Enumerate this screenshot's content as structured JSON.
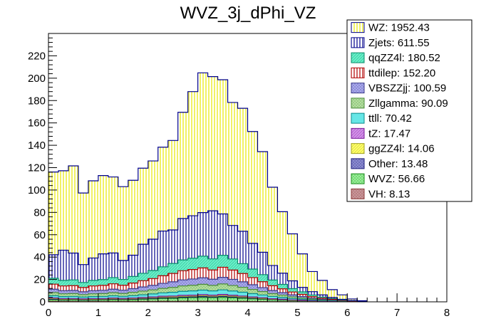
{
  "chart_data": {
    "type": "bar",
    "stacked": true,
    "title": "WVZ_3j_dPhi_VZ",
    "xlabel": "",
    "ylabel": "",
    "xlim": [
      0,
      8
    ],
    "ylim": [
      0,
      240
    ],
    "bin_width": 0.2,
    "x_ticks": [
      "0",
      "1",
      "2",
      "3",
      "4",
      "5",
      "6",
      "7",
      "8"
    ],
    "y_ticks": [
      "0",
      "20",
      "40",
      "60",
      "80",
      "100",
      "120",
      "140",
      "160",
      "180",
      "200",
      "220"
    ],
    "legend_position": "top-right",
    "series": [
      {
        "name": "VH",
        "total": "8.13",
        "fill": "#c8969a",
        "stroke": "#8b3a3a",
        "pattern": "cross",
        "values": [
          0.4,
          0.3,
          0.3,
          0.2,
          0.3,
          0.3,
          0.3,
          0.3,
          0.3,
          0.4,
          0.4,
          0.5,
          0.4,
          0.5,
          0.5,
          0.5,
          0.5,
          0.5,
          0.4,
          0.4,
          0.3,
          0.3,
          0.2,
          0.2,
          0.1,
          0.1,
          0.1,
          0.1,
          0.1,
          0.1,
          0.05,
          0.05
        ]
      },
      {
        "name": "WVZ",
        "total": "56.66",
        "fill": "#98f098",
        "stroke": "#1a8a1a",
        "pattern": "cross",
        "values": [
          1.5,
          1.3,
          1.4,
          1.2,
          1.3,
          1.4,
          1.6,
          1.5,
          1.6,
          1.9,
          2.2,
          2.5,
          2.7,
          3.0,
          3.2,
          3.4,
          3.2,
          3.5,
          3.2,
          2.8,
          2.4,
          2.0,
          1.6,
          1.3,
          1.0,
          0.8,
          0.5,
          0.4,
          0.3,
          0.2,
          0.1,
          0.05
        ]
      },
      {
        "name": "Other",
        "total": "13.48",
        "fill": "#8c8cd0",
        "stroke": "#1a1a7a",
        "pattern": "cross",
        "values": [
          0.5,
          0.4,
          0.4,
          0.4,
          0.4,
          0.4,
          0.4,
          0.4,
          0.4,
          0.5,
          0.5,
          0.6,
          0.6,
          0.7,
          0.7,
          0.8,
          0.7,
          0.8,
          0.7,
          0.6,
          0.5,
          0.4,
          0.3,
          0.3,
          0.2,
          0.2,
          0.1,
          0.1,
          0.1,
          0.05,
          0.05,
          0
        ]
      },
      {
        "name": "ggZZ4l",
        "total": "14.06",
        "fill": "#ffff66",
        "stroke": "#a0a020",
        "pattern": "hatch",
        "values": [
          0.5,
          0.4,
          0.4,
          0.4,
          0.4,
          0.4,
          0.5,
          0.4,
          0.5,
          0.5,
          0.6,
          0.6,
          0.7,
          0.7,
          0.7,
          0.8,
          0.7,
          0.8,
          0.7,
          0.6,
          0.5,
          0.4,
          0.3,
          0.3,
          0.2,
          0.2,
          0.1,
          0.1,
          0.1,
          0.05,
          0,
          0
        ]
      },
      {
        "name": "tZ",
        "total": "17.47",
        "fill": "#d290e8",
        "stroke": "#7a1a9a",
        "pattern": "hatch",
        "values": [
          0.6,
          0.5,
          0.5,
          0.5,
          0.5,
          0.5,
          0.6,
          0.5,
          0.6,
          0.6,
          0.7,
          0.8,
          0.8,
          0.9,
          0.9,
          1.0,
          0.9,
          1.0,
          0.9,
          0.8,
          0.7,
          0.6,
          0.4,
          0.3,
          0.3,
          0.2,
          0.2,
          0.1,
          0.1,
          0.05,
          0,
          0
        ]
      },
      {
        "name": "ttll",
        "total": "70.42",
        "fill": "#66e6e6",
        "stroke": "#0a8a8a",
        "pattern": "solid",
        "values": [
          2.0,
          1.8,
          1.8,
          1.6,
          1.8,
          1.8,
          2.0,
          1.8,
          2.1,
          2.4,
          2.7,
          3.0,
          3.3,
          3.6,
          3.8,
          4.0,
          3.8,
          4.1,
          3.8,
          3.4,
          2.9,
          2.4,
          2.0,
          1.6,
          1.2,
          0.9,
          0.6,
          0.4,
          0.3,
          0.2,
          0.1,
          0.05
        ]
      },
      {
        "name": "Zllgamma",
        "total": "90.09",
        "fill": "#b4e0a0",
        "stroke": "#4a8a3a",
        "pattern": "cross",
        "values": [
          2.8,
          2.5,
          2.6,
          2.2,
          2.5,
          2.6,
          2.8,
          2.6,
          3.0,
          3.3,
          3.6,
          4.0,
          4.4,
          4.8,
          5.0,
          5.2,
          4.9,
          5.3,
          4.9,
          4.4,
          3.8,
          3.1,
          2.5,
          2.0,
          1.5,
          1.1,
          0.8,
          0.5,
          0.3,
          0.2,
          0.1,
          0.05
        ]
      },
      {
        "name": "VBSZZjj",
        "total": "100.59",
        "fill": "#aaaaee",
        "stroke": "#3a3a8a",
        "pattern": "cross",
        "values": [
          3.0,
          2.8,
          2.8,
          2.5,
          2.8,
          2.9,
          3.1,
          2.9,
          3.3,
          3.7,
          4.0,
          4.5,
          5.0,
          5.4,
          5.6,
          5.8,
          5.5,
          5.9,
          5.5,
          4.9,
          4.2,
          3.5,
          2.8,
          2.2,
          1.7,
          1.3,
          0.9,
          0.6,
          0.4,
          0.2,
          0.1,
          0.05
        ]
      },
      {
        "name": "ttdilep",
        "total": "152.20",
        "fill": "#ff6666",
        "stroke": "#b00000",
        "pattern": "vline",
        "values": [
          4.5,
          4.2,
          4.3,
          3.8,
          4.2,
          4.4,
          4.8,
          4.4,
          5.0,
          5.6,
          6.1,
          6.8,
          7.5,
          8.2,
          8.5,
          8.8,
          8.3,
          9.0,
          8.3,
          7.4,
          6.4,
          5.3,
          4.3,
          3.4,
          2.6,
          1.9,
          1.3,
          0.9,
          0.6,
          0.3,
          0.2,
          0.1
        ]
      },
      {
        "name": "qqZZ4l",
        "total": "180.52",
        "fill": "#66f0c8",
        "stroke": "#0a8a6a",
        "pattern": "hatch",
        "values": [
          5.3,
          5.0,
          5.1,
          4.5,
          5.0,
          5.2,
          5.6,
          5.2,
          5.9,
          6.6,
          7.2,
          8.0,
          8.9,
          9.7,
          10.1,
          10.5,
          9.9,
          10.7,
          9.9,
          8.8,
          7.6,
          6.3,
          5.1,
          4.0,
          3.0,
          2.2,
          1.5,
          1.0,
          0.6,
          0.4,
          0.2,
          0.1
        ]
      },
      {
        "name": "Zjets",
        "total": "611.55",
        "fill": "#6666ee",
        "stroke": "#00008b",
        "pattern": "vline",
        "values": [
          21,
          27,
          24,
          16,
          20,
          23,
          22,
          17,
          19,
          26,
          28,
          32,
          30,
          37,
          38,
          39,
          43,
          37,
          30,
          29,
          23,
          20,
          13,
          10,
          7,
          4,
          3,
          2,
          1,
          0.5,
          0.2,
          0.1
        ]
      },
      {
        "name": "WZ",
        "total": "1952.43",
        "fill": "#ffff66",
        "stroke": "#00008b",
        "pattern": "vline",
        "values": [
          74,
          71,
          78,
          64,
          69,
          70,
          68,
          66,
          67,
          68,
          70,
          75,
          80,
          95,
          111,
          125,
          120,
          120,
          110,
          110,
          100,
          90,
          70,
          55,
          42,
          30,
          18,
          13,
          7,
          4,
          1.5,
          0.4
        ]
      }
    ]
  }
}
